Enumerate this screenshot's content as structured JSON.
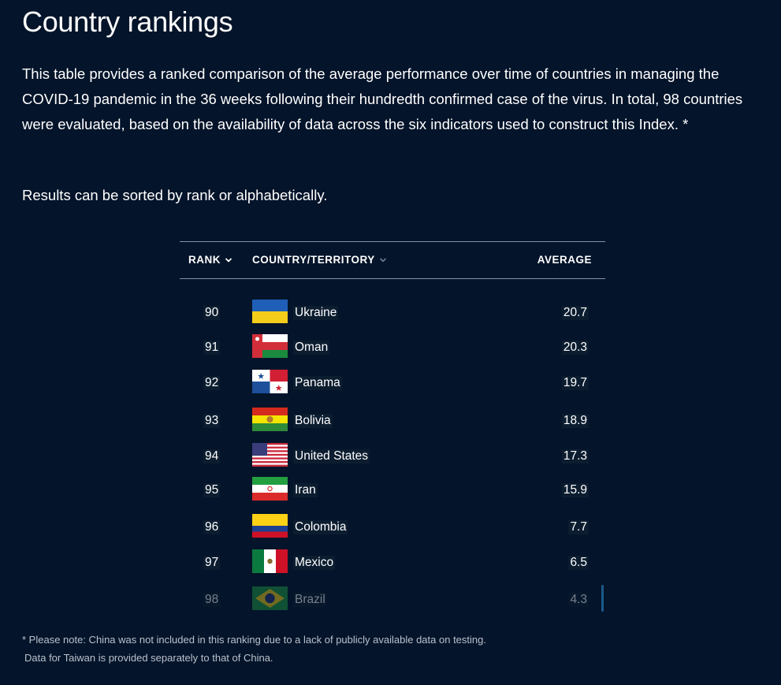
{
  "title": "Country rankings",
  "intro": "This table provides a ranked comparison of the average performance over time of countries in managing the COVID-19 pandemic in the 36 weeks following their hundredth confirmed case of the virus. In total, 98 countries were evaluated, based on the availability of data across the six indicators used to construct this Index. *",
  "sort_note": "Results can be sorted by rank or alphabetically.",
  "table": {
    "headers": {
      "rank": "RANK",
      "country": "COUNTRY/TERRITORY",
      "average": "AVERAGE"
    },
    "rows": [
      {
        "rank": "90",
        "country": "Ukraine",
        "average": "20.7",
        "flag": "ukraine-flag-icon"
      },
      {
        "rank": "91",
        "country": "Oman",
        "average": "20.3",
        "flag": "oman-flag-icon"
      },
      {
        "rank": "92",
        "country": "Panama",
        "average": "19.7",
        "flag": "panama-flag-icon"
      },
      {
        "rank": "93",
        "country": "Bolivia",
        "average": "18.9",
        "flag": "bolivia-flag-icon"
      },
      {
        "rank": "94",
        "country": "United States",
        "average": "17.3",
        "flag": "united-states-flag-icon"
      },
      {
        "rank": "95",
        "country": "Iran",
        "average": "15.9",
        "flag": "iran-flag-icon"
      },
      {
        "rank": "96",
        "country": "Colombia",
        "average": "7.7",
        "flag": "colombia-flag-icon"
      },
      {
        "rank": "97",
        "country": "Mexico",
        "average": "6.5",
        "flag": "mexico-flag-icon"
      },
      {
        "rank": "98",
        "country": "Brazil",
        "average": "4.3",
        "flag": "brazil-flag-icon"
      }
    ]
  },
  "footnote": {
    "line1": "* Please note: China was not included in this ranking due to a lack of publicly available data on testing.",
    "line2": "Data for Taiwan is provided separately to that of China."
  },
  "colors": {
    "background": "#04142a",
    "divider": "#8593a6",
    "text": "#ffffff",
    "footnote_text": "#b9c1cc"
  }
}
